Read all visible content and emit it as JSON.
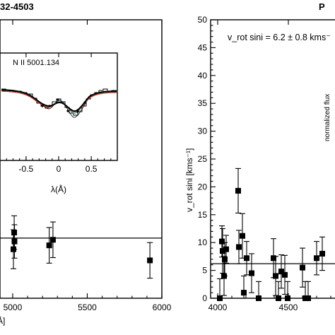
{
  "chart_data": [
    {
      "type": "scatter",
      "title": "32-4503",
      "xlabel": "Å]",
      "xticks": [
        "5000",
        "5500",
        "6000"
      ],
      "xlim": [
        4915,
        6000
      ],
      "ylim": [
        0,
        50
      ],
      "mean_line": 10.8,
      "points": [
        {
          "x": 5005,
          "y": 8.8,
          "err": 3.5
        },
        {
          "x": 5010,
          "y": 11.8,
          "err": 3.0
        },
        {
          "x": 5012,
          "y": 10.2,
          "err": 3.0
        },
        {
          "x": 5245,
          "y": 9.5,
          "err": 3.2
        },
        {
          "x": 5270,
          "y": 10.5,
          "err": 3.2
        },
        {
          "x": 5920,
          "y": 6.8,
          "err": 3.2
        }
      ],
      "inset": {
        "title": "N II  5001.134",
        "xlabel": "λ(Å)",
        "xticks": [
          "-0.5",
          "0",
          "0.5"
        ],
        "xlim": [
          -0.9,
          0.9
        ],
        "ylim": [
          0.55,
          1.15
        ]
      }
    },
    {
      "type": "scatter",
      "title": "P",
      "ylabel": "v_rot sini [kms⁻¹]",
      "annotation": "v_rot sini = 6.2 ± 0.8 kms⁻",
      "inset_ylabel": "normalized flux",
      "xticks": [
        "4000",
        "4500"
      ],
      "yticks": [
        "0",
        "5",
        "10",
        "15",
        "20",
        "25",
        "30",
        "35",
        "40",
        "45",
        "50"
      ],
      "xlim": [
        3950,
        4950
      ],
      "ylim": [
        0,
        50
      ],
      "mean_line": 6.2,
      "points": [
        {
          "x": 4015,
          "y": 0.0,
          "err": 3.5
        },
        {
          "x": 4030,
          "y": 10.2,
          "err": 2.8
        },
        {
          "x": 4035,
          "y": 8.5,
          "err": 4.0
        },
        {
          "x": 4045,
          "y": 4.0,
          "err": 3.5
        },
        {
          "x": 4050,
          "y": 7.0,
          "err": 3.0
        },
        {
          "x": 4060,
          "y": 8.8,
          "err": 2.5
        },
        {
          "x": 4145,
          "y": 19.3,
          "err": 4.0
        },
        {
          "x": 4150,
          "y": 9.2,
          "err": 3.0
        },
        {
          "x": 4175,
          "y": 11.2,
          "err": 4.0
        },
        {
          "x": 4185,
          "y": 1.0,
          "err": 3.0
        },
        {
          "x": 4205,
          "y": 7.2,
          "err": 3.0
        },
        {
          "x": 4240,
          "y": 4.5,
          "err": 3.5
        },
        {
          "x": 4290,
          "y": 0.0,
          "err": 3.0
        },
        {
          "x": 4395,
          "y": 7.2,
          "err": 3.5
        },
        {
          "x": 4410,
          "y": 4.0,
          "err": 3.5
        },
        {
          "x": 4430,
          "y": 0.0,
          "err": 3.0
        },
        {
          "x": 4450,
          "y": 4.8,
          "err": 3.0
        },
        {
          "x": 4475,
          "y": 4.2,
          "err": 3.5
        },
        {
          "x": 4495,
          "y": 0.0,
          "err": 3.0
        },
        {
          "x": 4600,
          "y": 5.5,
          "err": 3.5
        },
        {
          "x": 4620,
          "y": 0.0,
          "err": 3.0
        },
        {
          "x": 4640,
          "y": 0.0,
          "err": 3.0
        },
        {
          "x": 4700,
          "y": 7.2,
          "err": 3.0
        },
        {
          "x": 4740,
          "y": 8.0,
          "err": 3.0
        }
      ]
    }
  ]
}
